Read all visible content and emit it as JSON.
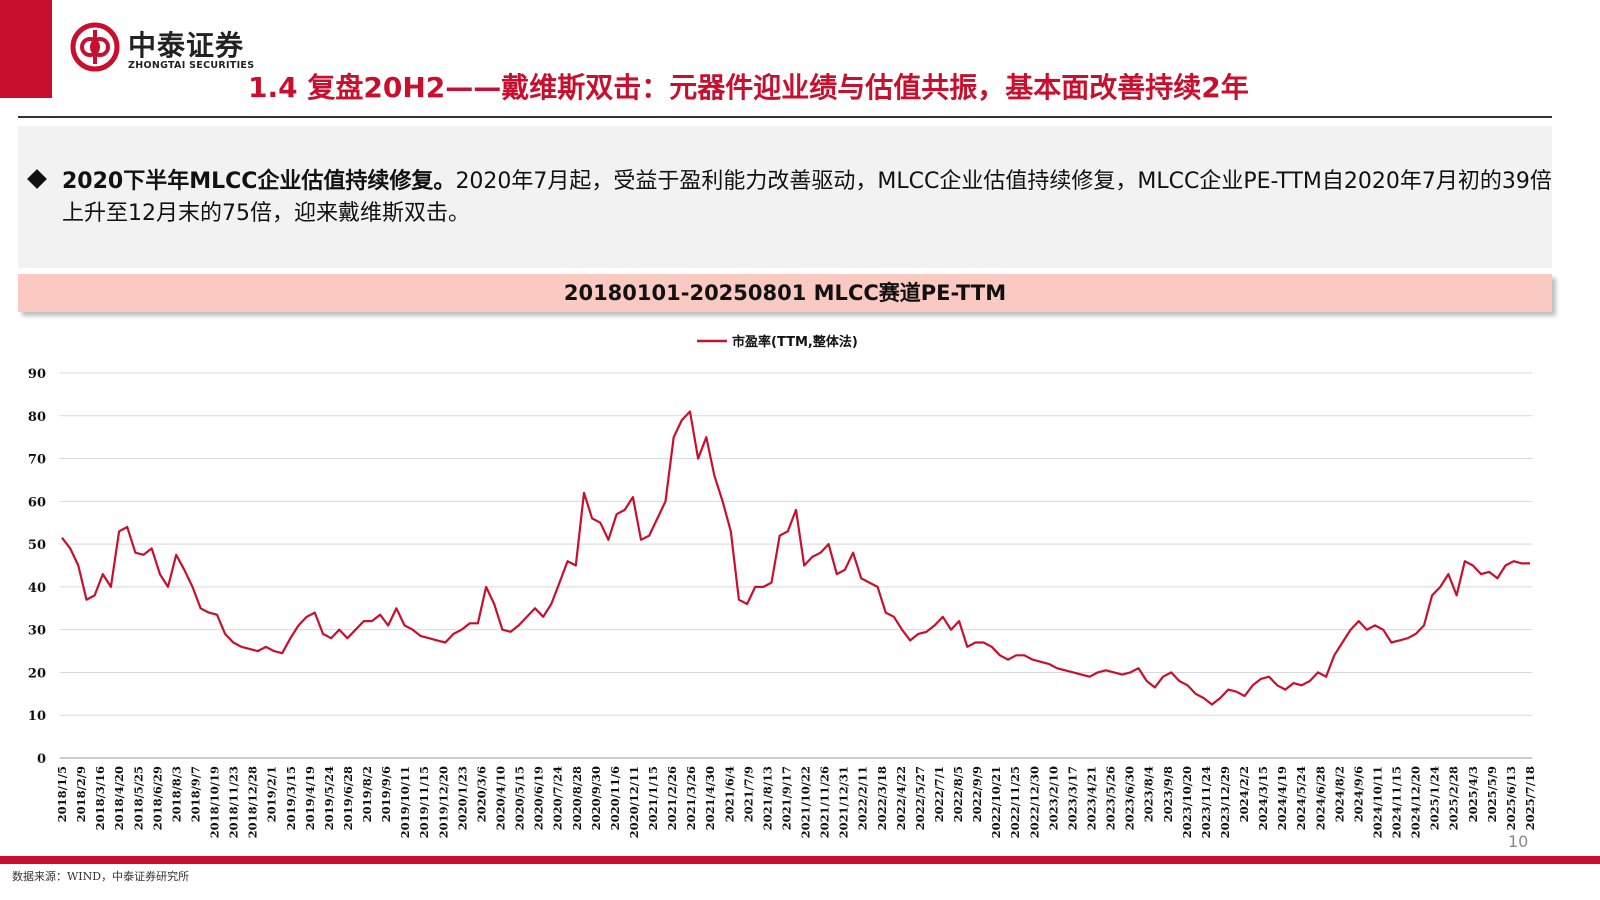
{
  "header": {
    "logo_cn": "中泰证券",
    "logo_en": "ZHONGTAI SECURITIES",
    "title": "1.4 复盘20H2——戴维斯双击：元器件迎业绩与估值共振，基本面改善持续2年",
    "accent": "#c8102e"
  },
  "bullet": {
    "bold": "2020下半年MLCC企业估值持续修复。",
    "text": "2020年7月起，受益于盈利能力改善驱动，MLCC企业估值持续修复，MLCC企业PE-TTM自2020年7月初的39倍上升至12月末的75倍，迎来戴维斯双击。"
  },
  "chart_banner": "20180101-20250801 MLCC赛道PE-TTM",
  "footer": {
    "page_number": "10",
    "source": "数据来源：WIND，中泰证券研究所"
  },
  "chart_data": {
    "type": "line",
    "legend": "top-center",
    "grid": true,
    "ylim": [
      0,
      90
    ],
    "yticks": [
      0,
      10,
      20,
      30,
      40,
      50,
      60,
      70,
      80,
      90
    ],
    "line_color": "#c8102e",
    "series": [
      {
        "name": "市盈率(TTM,整体法)",
        "values": [
          51.5,
          49,
          45,
          37,
          38,
          43,
          40,
          53,
          54,
          48,
          47.5,
          49,
          43,
          40,
          47.5,
          44,
          40,
          35,
          34,
          33.5,
          29,
          27,
          26,
          25.5,
          25,
          26,
          25,
          24.5,
          28,
          31,
          33,
          34,
          29,
          28,
          30,
          28,
          30,
          32,
          32,
          33.5,
          31,
          35,
          31,
          30,
          28.5,
          28,
          27.5,
          27,
          29,
          30,
          31.5,
          31.5,
          40,
          36,
          30,
          29.5,
          31,
          33,
          35,
          33,
          36,
          41,
          46,
          45,
          62,
          56,
          55,
          51,
          57,
          58,
          61,
          51,
          52,
          56,
          60,
          75,
          79,
          81,
          70,
          75,
          66,
          60,
          53,
          37,
          36,
          40,
          40,
          41,
          52,
          53,
          58,
          45,
          47,
          48,
          50,
          43,
          44,
          48,
          42,
          41,
          40,
          34,
          33,
          30,
          27.5,
          29,
          29.5,
          31,
          33,
          30,
          32,
          26,
          27,
          27,
          26,
          24,
          23,
          24,
          24,
          23,
          22.5,
          22,
          21,
          20.5,
          20,
          19.5,
          19,
          20,
          20.5,
          20,
          19.5,
          20,
          21,
          18,
          16.5,
          19,
          20,
          18,
          17,
          15,
          14,
          12.5,
          14,
          16,
          15.5,
          14.5,
          17,
          18.5,
          19,
          17,
          16,
          17.5,
          17,
          18,
          20,
          19,
          24,
          27,
          30,
          32,
          30,
          31,
          30,
          27,
          27.5,
          28,
          29,
          31,
          38,
          40,
          43,
          38,
          46,
          45,
          43,
          43.5,
          42,
          45,
          46,
          45.5,
          45.5
        ]
      }
    ],
    "x_labels": [
      "2018/1/5",
      "2018/2/9",
      "2018/3/16",
      "2018/4/20",
      "2018/5/25",
      "2018/6/29",
      "2018/8/3",
      "2018/9/7",
      "2018/10/19",
      "2018/11/23",
      "2018/12/28",
      "2019/2/1",
      "2019/3/15",
      "2019/4/19",
      "2019/5/24",
      "2019/6/28",
      "2019/8/2",
      "2019/9/6",
      "2019/10/11",
      "2019/11/15",
      "2019/12/20",
      "2020/1/23",
      "2020/3/6",
      "2020/4/10",
      "2020/5/15",
      "2020/6/19",
      "2020/7/24",
      "2020/8/28",
      "2020/9/30",
      "2020/11/6",
      "2020/12/11",
      "2021/1/15",
      "2021/2/26",
      "2021/3/26",
      "2021/4/30",
      "2021/6/4",
      "2021/7/9",
      "2021/8/13",
      "2021/9/17",
      "2021/10/22",
      "2021/11/26",
      "2021/12/31",
      "2022/2/11",
      "2022/3/18",
      "2022/4/22",
      "2022/5/27",
      "2022/7/1",
      "2022/8/5",
      "2022/9/9",
      "2022/10/21",
      "2022/11/25",
      "2022/12/30",
      "2023/2/10",
      "2023/3/17",
      "2023/4/21",
      "2023/5/26",
      "2023/6/30",
      "2023/8/4",
      "2023/9/8",
      "2023/10/20",
      "2023/11/24",
      "2023/12/29",
      "2024/2/2",
      "2024/3/15",
      "2024/4/19",
      "2024/5/24",
      "2024/6/28",
      "2024/8/2",
      "2024/9/6",
      "2024/10/11",
      "2024/11/15",
      "2024/12/20",
      "2025/1/24",
      "2025/2/28",
      "2025/4/3",
      "2025/5/9",
      "2025/6/13",
      "2025/7/18"
    ]
  }
}
